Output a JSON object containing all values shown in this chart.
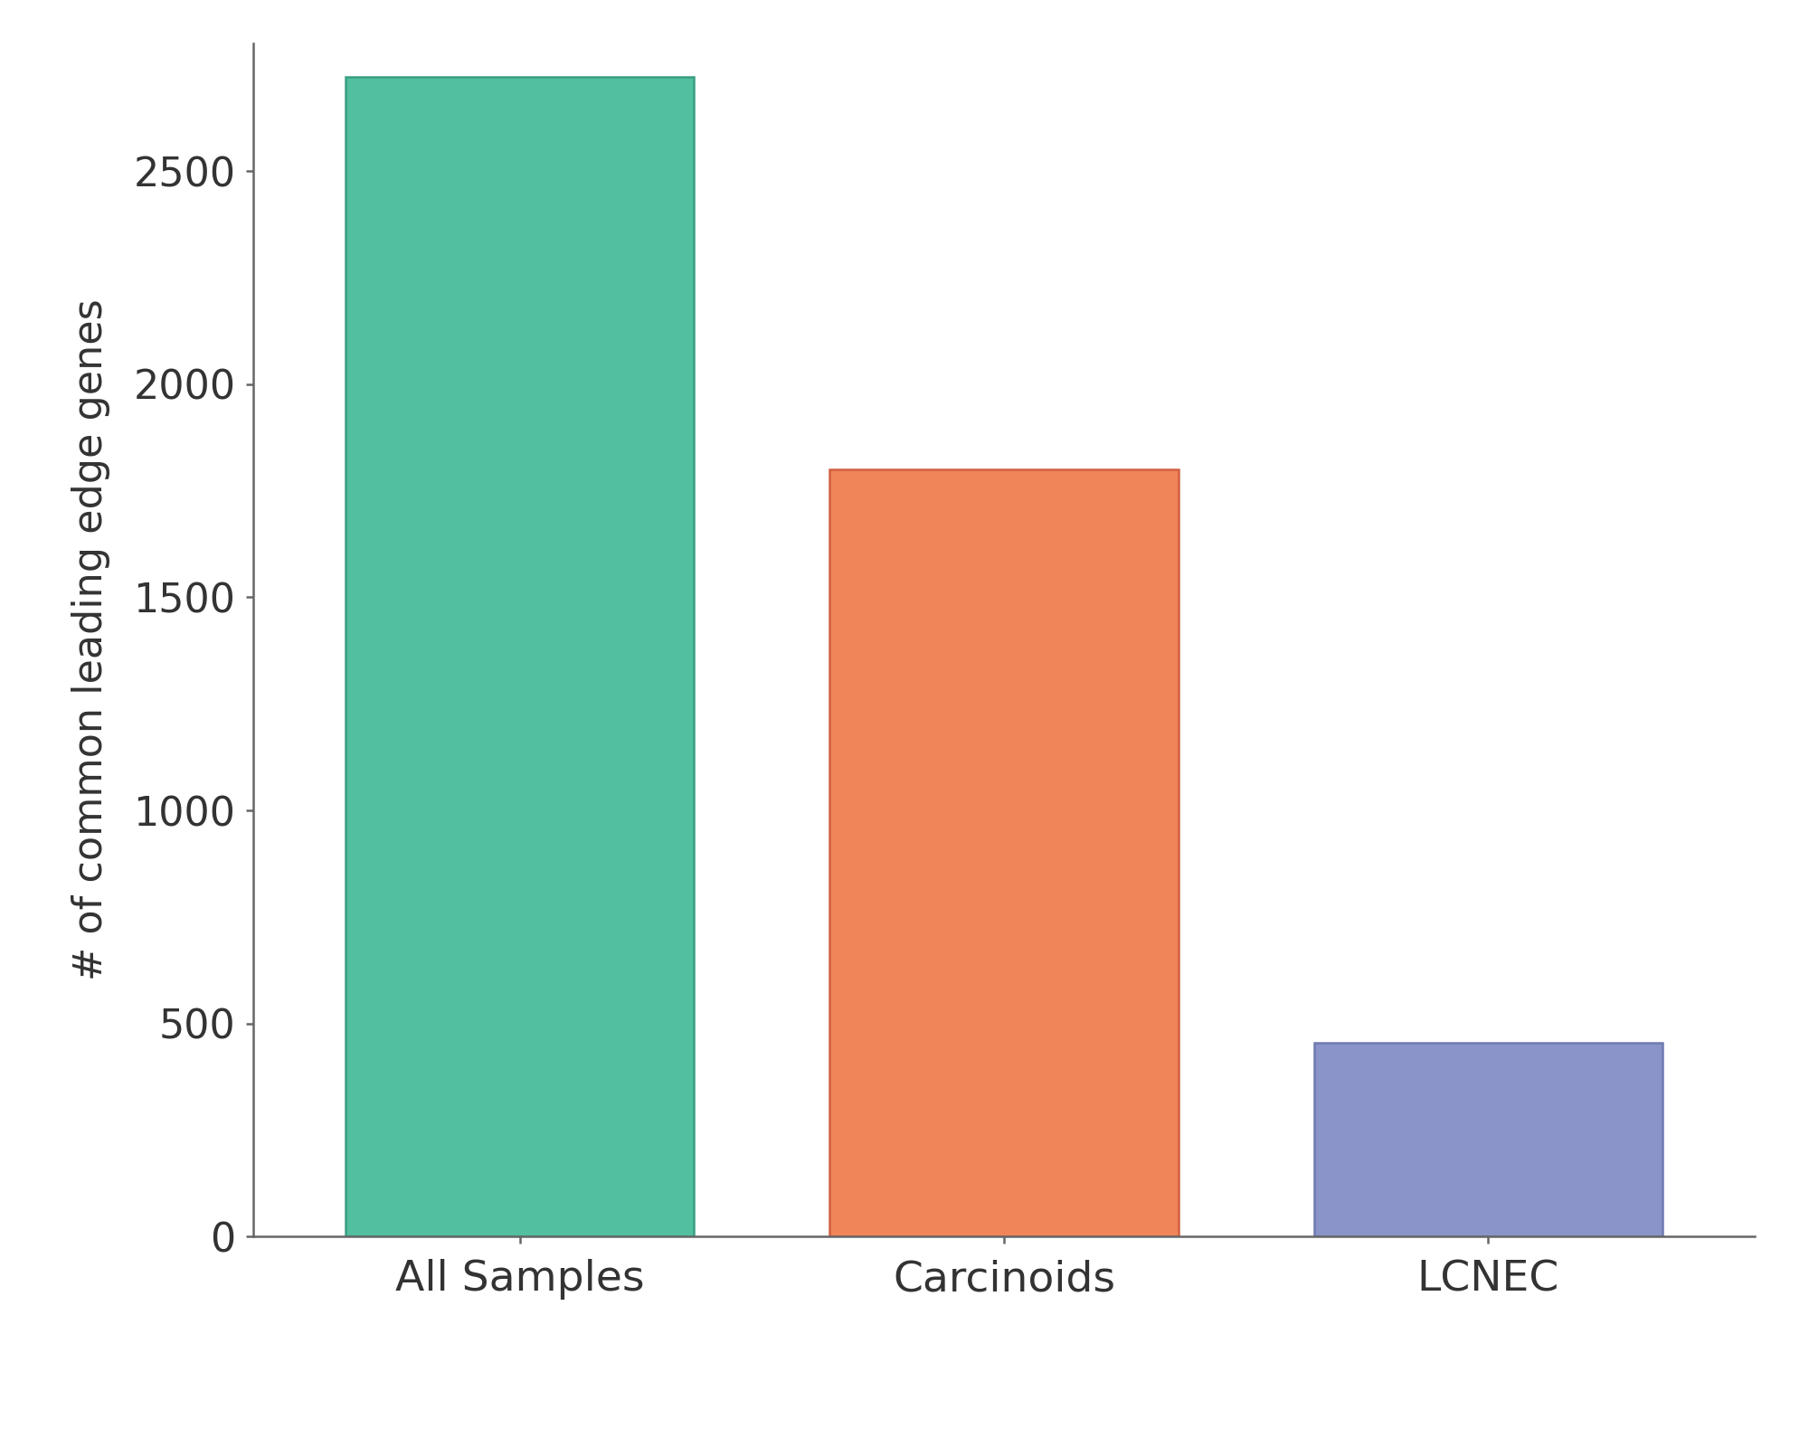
{
  "categories": [
    "All Samples",
    "Carcinoids",
    "LCNEC"
  ],
  "values": [
    2720,
    1800,
    455
  ],
  "bar_colors": [
    "#52BFA0",
    "#F0855A",
    "#8A94C8"
  ],
  "bar_edge_colors": [
    "#3a9e82",
    "#d06040",
    "#6e7ab0"
  ],
  "ylabel": "# of common leading edge genes",
  "ylim": [
    0,
    2800
  ],
  "yticks": [
    0,
    500,
    1000,
    1500,
    2000,
    2500
  ],
  "bar_width": 0.72,
  "background_color": "#ffffff",
  "tick_label_fontsize": 32,
  "ylabel_fontsize": 32,
  "xlabel_fontsize": 34,
  "spine_color": "#666666",
  "tick_color": "#333333",
  "label_color": "#333333"
}
